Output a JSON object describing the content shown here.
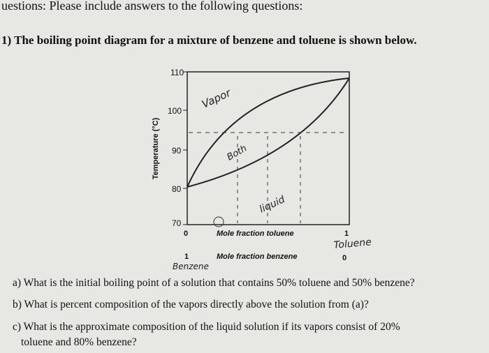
{
  "header": {
    "title": "uestions: Please include answers to the following questions:"
  },
  "question_1": {
    "text": "1) The boiling point diagram for a mixture of benzene and toluene is shown below."
  },
  "diagram": {
    "y_axis_label": "Temperature (°C)",
    "yticks": [
      "110",
      "100",
      "90",
      "80",
      "70"
    ],
    "x_axis_toluene": {
      "start": "0",
      "label": "Mole fraction toluene",
      "end": "1"
    },
    "x_axis_benzene": {
      "start": "1",
      "label": "Mole fraction benzene",
      "end": "0"
    },
    "annotations": {
      "vapor": "Vapor",
      "both": "Both",
      "liquid": "liquid",
      "toluene": "Toluene",
      "benzene": "Benzene"
    }
  },
  "questions": {
    "a": "a) What is the initial boiling point of a solution that contains 50% toluene and 50% benzene?",
    "b": "b) What is percent composition of the vapors directly above the solution from (a)?",
    "c_line1": "c) What is the approximate composition of the liquid solution if its vapors consist of 20%",
    "c_line2": "toluene and 80% benzene?"
  }
}
